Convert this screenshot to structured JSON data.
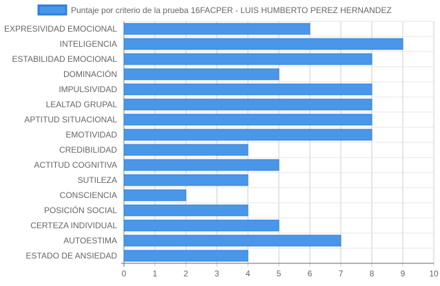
{
  "chart_data": {
    "type": "bar",
    "orientation": "horizontal",
    "categories": [
      "EXPRESIVIDAD EMOCIONAL",
      "INTELIGENCIA",
      "ESTABILIDAD EMOCIONAL",
      "DOMINACIÓN",
      "IMPULSIVIDAD",
      "LEALTAD GRUPAL",
      "APTITUD SITUACIONAL",
      "EMOTIVIDAD",
      "CREDIBILIDAD",
      "ACTITUD COGNITIVA",
      "SUTILEZA",
      "CONSCIENCIA",
      "POSICIÓN SOCIAL",
      "CERTEZA INDIVIDUAL",
      "AUTOESTIMA",
      "ESTADO DE ANSIEDAD"
    ],
    "series": [
      {
        "name": "Puntaje por criterio de la prueba 16FACPER - LUIS HUMBERTO PEREZ HERNANDEZ",
        "values": [
          6,
          9,
          8,
          5,
          8,
          8,
          8,
          8,
          4,
          5,
          4,
          2,
          4,
          5,
          7,
          4
        ],
        "color": "#4a97ea",
        "border_color": "#2e7fd8"
      }
    ],
    "xlim": [
      0,
      10
    ],
    "xticks": [
      "0",
      "1",
      "2",
      "3",
      "4",
      "5",
      "6",
      "7",
      "8",
      "9",
      "10"
    ],
    "grid": true,
    "legend_position": "top-center"
  }
}
